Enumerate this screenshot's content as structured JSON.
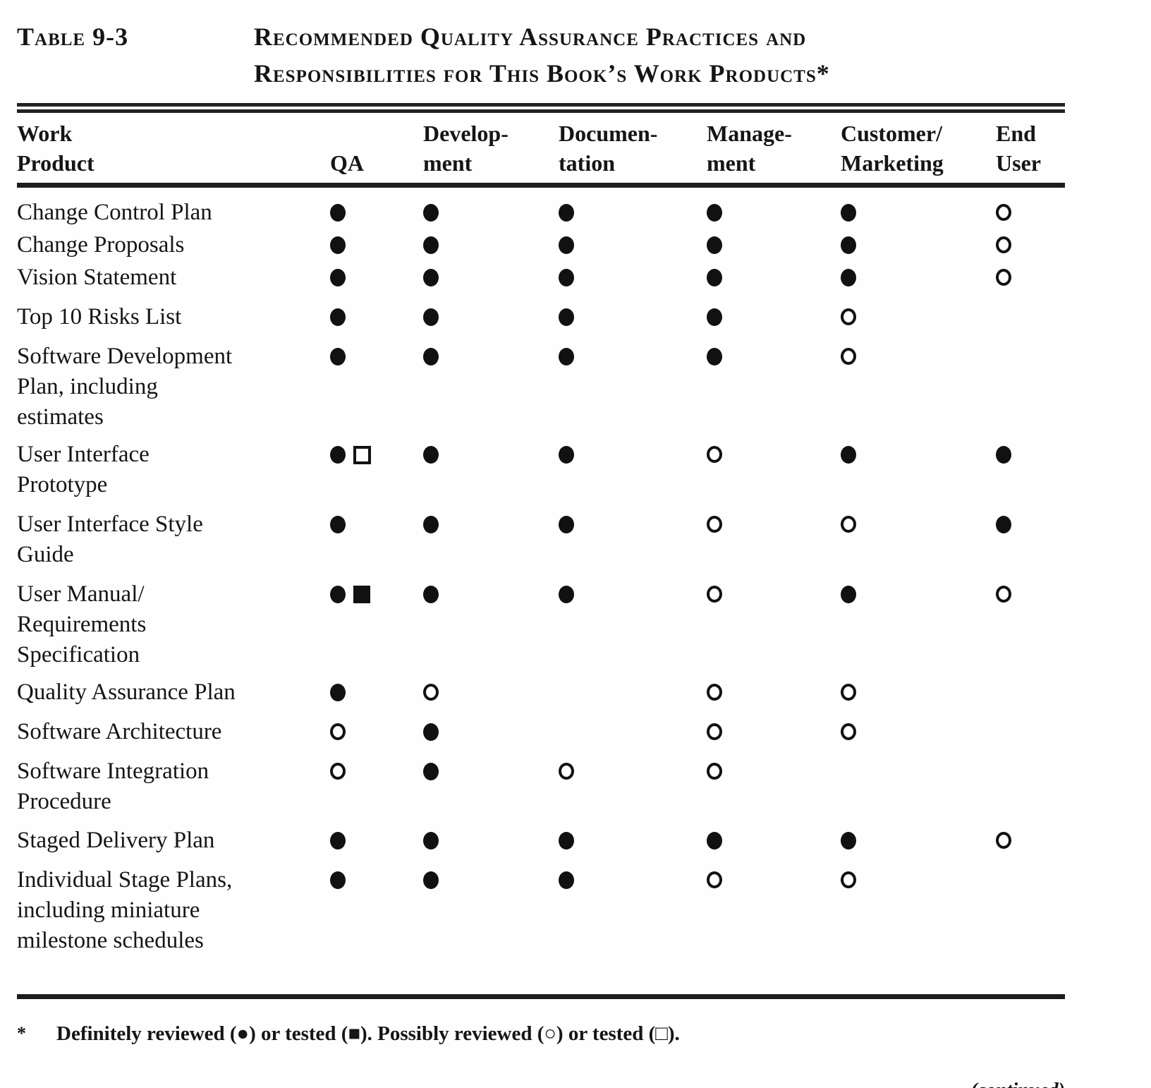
{
  "header": {
    "table_label": "Table 9-3",
    "title_line1": "Recommended Quality Assurance Practices and",
    "title_line2": "Responsibilities for This Book’s Work Products*"
  },
  "table": {
    "columns": [
      {
        "id": "work-product",
        "lines": [
          "Work",
          "Product"
        ]
      },
      {
        "id": "qa",
        "lines": [
          "QA"
        ]
      },
      {
        "id": "development",
        "lines": [
          "Develop-",
          "ment"
        ]
      },
      {
        "id": "documentation",
        "lines": [
          "Documen-",
          "tation"
        ]
      },
      {
        "id": "management",
        "lines": [
          "Manage-",
          "ment"
        ]
      },
      {
        "id": "customer-marketing",
        "lines": [
          "Customer/",
          "Marketing"
        ]
      },
      {
        "id": "end-user",
        "lines": [
          "End",
          "User"
        ]
      }
    ],
    "symbols": {
      "F": "filled-circle (definitely reviewed)",
      "FS": "filled-square (definitely tested)",
      "O": "open-circle (possibly reviewed)",
      "OS": "open-square (possibly tested)"
    },
    "rows": [
      {
        "label": [
          "Change Control Plan"
        ],
        "cells": [
          "F",
          "F",
          "F",
          "F",
          "F",
          "O"
        ]
      },
      {
        "label": [
          "Change Proposals"
        ],
        "cells": [
          "F",
          "F",
          "F",
          "F",
          "F",
          "O"
        ]
      },
      {
        "label": [
          "Vision Statement"
        ],
        "cells": [
          "F",
          "F",
          "F",
          "F",
          "F",
          "O"
        ]
      },
      {
        "label": [
          "Top 10 Risks List"
        ],
        "cells": [
          "F",
          "F",
          "F",
          "F",
          "O",
          ""
        ]
      },
      {
        "label": [
          "Software Development",
          "Plan, including",
          "estimates"
        ],
        "cells": [
          "F",
          "F",
          "F",
          "F",
          "O",
          ""
        ]
      },
      {
        "label": [
          "User Interface",
          "Prototype"
        ],
        "cells": [
          "F OS",
          "F",
          "F",
          "O",
          "F",
          "F"
        ]
      },
      {
        "label": [
          "User Interface Style",
          "Guide"
        ],
        "cells": [
          "F",
          "F",
          "F",
          "O",
          "O",
          "F"
        ]
      },
      {
        "label": [
          "User Manual/",
          "Requirements",
          "Specification"
        ],
        "cells": [
          "F FS",
          "F",
          "F",
          "O",
          "F",
          "O"
        ]
      },
      {
        "label": [
          "Quality Assurance Plan"
        ],
        "cells": [
          "F",
          "O",
          "",
          "O",
          "O",
          ""
        ]
      },
      {
        "label": [
          "Software Architecture"
        ],
        "cells": [
          "O",
          "F",
          "",
          "O",
          "O",
          ""
        ]
      },
      {
        "label": [
          "Software Integration",
          "Procedure"
        ],
        "cells": [
          "O",
          "F",
          "O",
          "O",
          "",
          ""
        ]
      },
      {
        "label": [
          "Staged Delivery Plan"
        ],
        "cells": [
          "F",
          "F",
          "F",
          "F",
          "F",
          "O"
        ]
      },
      {
        "label": [
          "Individual Stage Plans,",
          "including miniature",
          "milestone schedules"
        ],
        "cells": [
          "F",
          "F",
          "F",
          "O",
          "O",
          ""
        ]
      }
    ]
  },
  "footnote": {
    "marker": "*",
    "text": "Definitely reviewed (●) or tested (■). Possibly reviewed (○) or tested (□)."
  },
  "continued": "(continued)"
}
